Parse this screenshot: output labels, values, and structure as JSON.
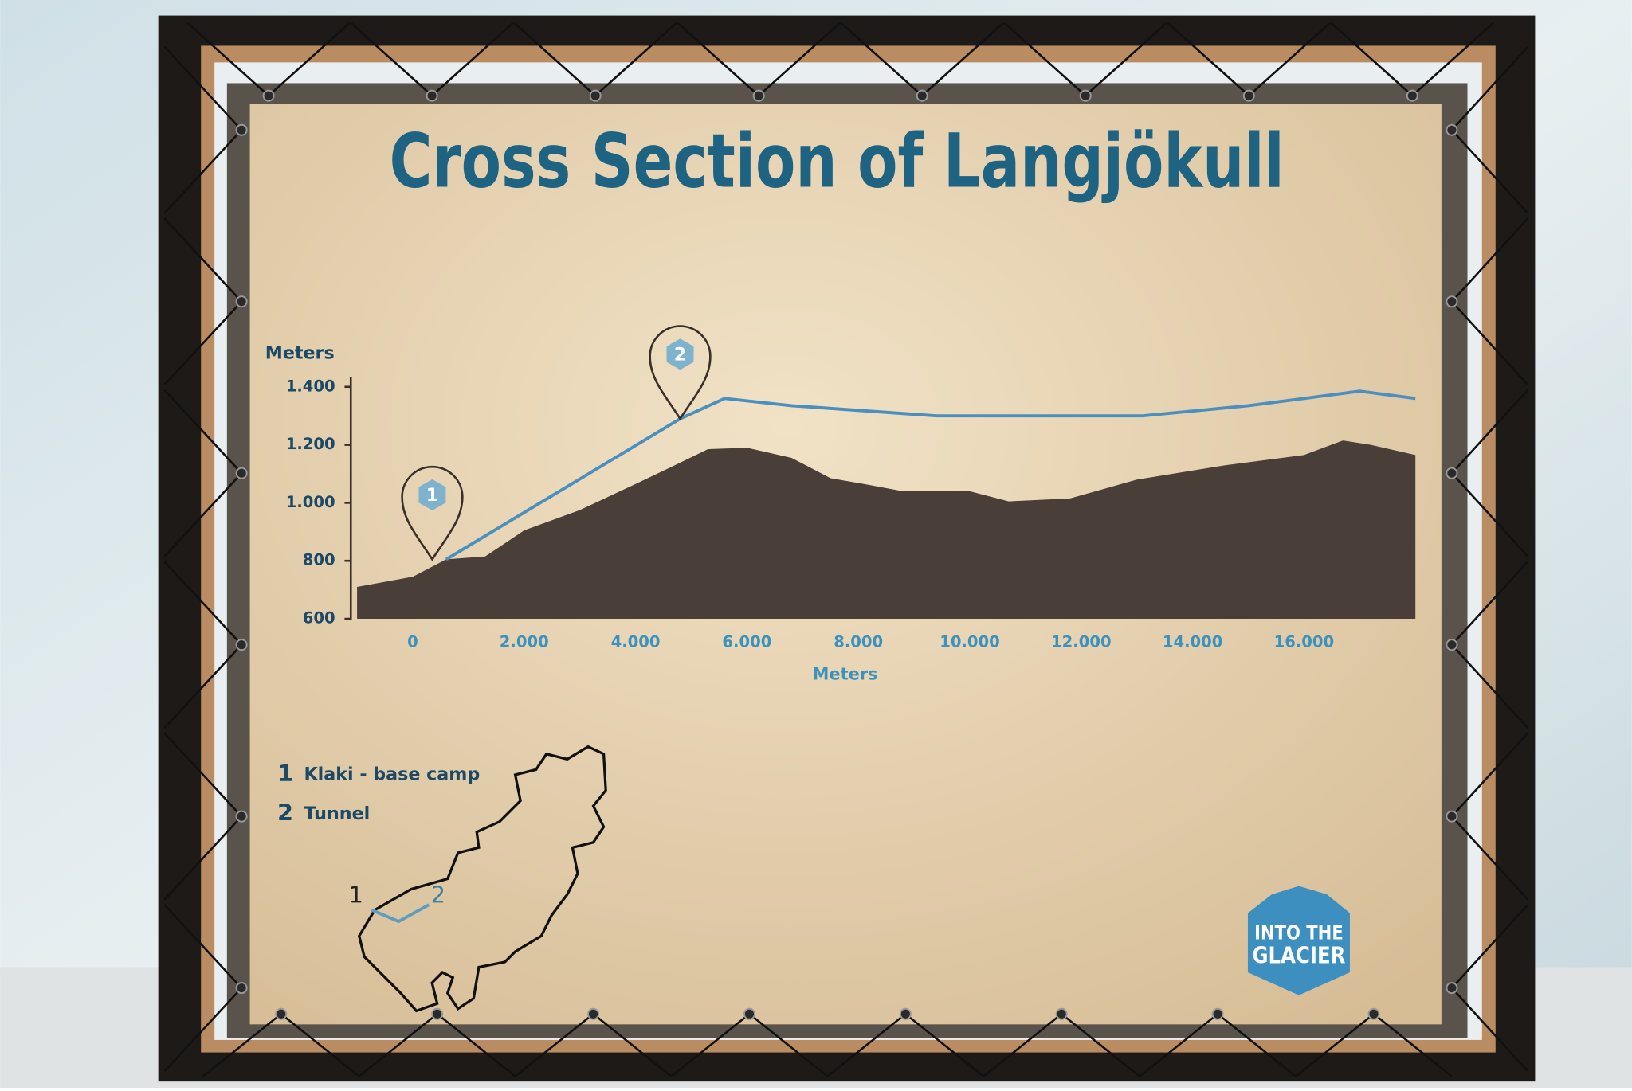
{
  "chart_data": {
    "type": "area",
    "title": "Cross Section of Langjökull",
    "ylabel": "Meters",
    "xlabel": "Meters",
    "xlim": [
      -1000,
      18000
    ],
    "ylim": [
      600,
      1425
    ],
    "xticks": [
      0,
      {
        "value": 2000,
        "label": "2.000"
      },
      {
        "value": 4000,
        "label": "4.000"
      },
      {
        "value": 6000,
        "label": "6.000"
      },
      {
        "value": 8000,
        "label": "8.000"
      },
      {
        "value": 10000,
        "label": "10.000"
      },
      {
        "value": 12000,
        "label": "12.000"
      },
      {
        "value": 14000,
        "label": "14.000"
      },
      {
        "value": 16000,
        "label": "16.000"
      }
    ],
    "yticks": [
      600,
      800,
      {
        "value": 1000,
        "label": "1.000"
      },
      {
        "value": 1200,
        "label": "1.200"
      },
      {
        "value": 1400,
        "label": "1.400"
      }
    ],
    "series": [
      {
        "type": "area",
        "color": "#4a3f38",
        "x": [
          -1000,
          0,
          600,
          1300,
          2000,
          3000,
          4000,
          4600,
          5300,
          6000,
          6800,
          7500,
          8100,
          8800,
          10000,
          10700,
          11800,
          13000,
          14600,
          16000,
          16700,
          17200,
          18000
        ],
        "values": [
          710,
          745,
          805,
          815,
          905,
          975,
          1065,
          1120,
          1185,
          1190,
          1155,
          1085,
          1065,
          1040,
          1040,
          1005,
          1015,
          1080,
          1130,
          1165,
          1215,
          1200,
          1165
        ]
      },
      {
        "type": "line",
        "color": "#4b8fbf",
        "x": [
          600,
          4800,
          5600,
          6800,
          9400,
          13100,
          15000,
          17000,
          18000
        ],
        "values": [
          805,
          1290,
          1360,
          1335,
          1300,
          1300,
          1335,
          1385,
          1360
        ]
      }
    ],
    "annotations": [
      {
        "text": "1",
        "x": 350,
        "y": 805
      },
      {
        "text": "2",
        "x": 4800,
        "y": 1290
      }
    ],
    "notes": [
      {
        "number": "1",
        "text": "Klaki - base camp"
      },
      {
        "number": "2",
        "text": "Tunnel"
      }
    ],
    "logo": [
      "INTO THE",
      "GLACIER"
    ]
  }
}
